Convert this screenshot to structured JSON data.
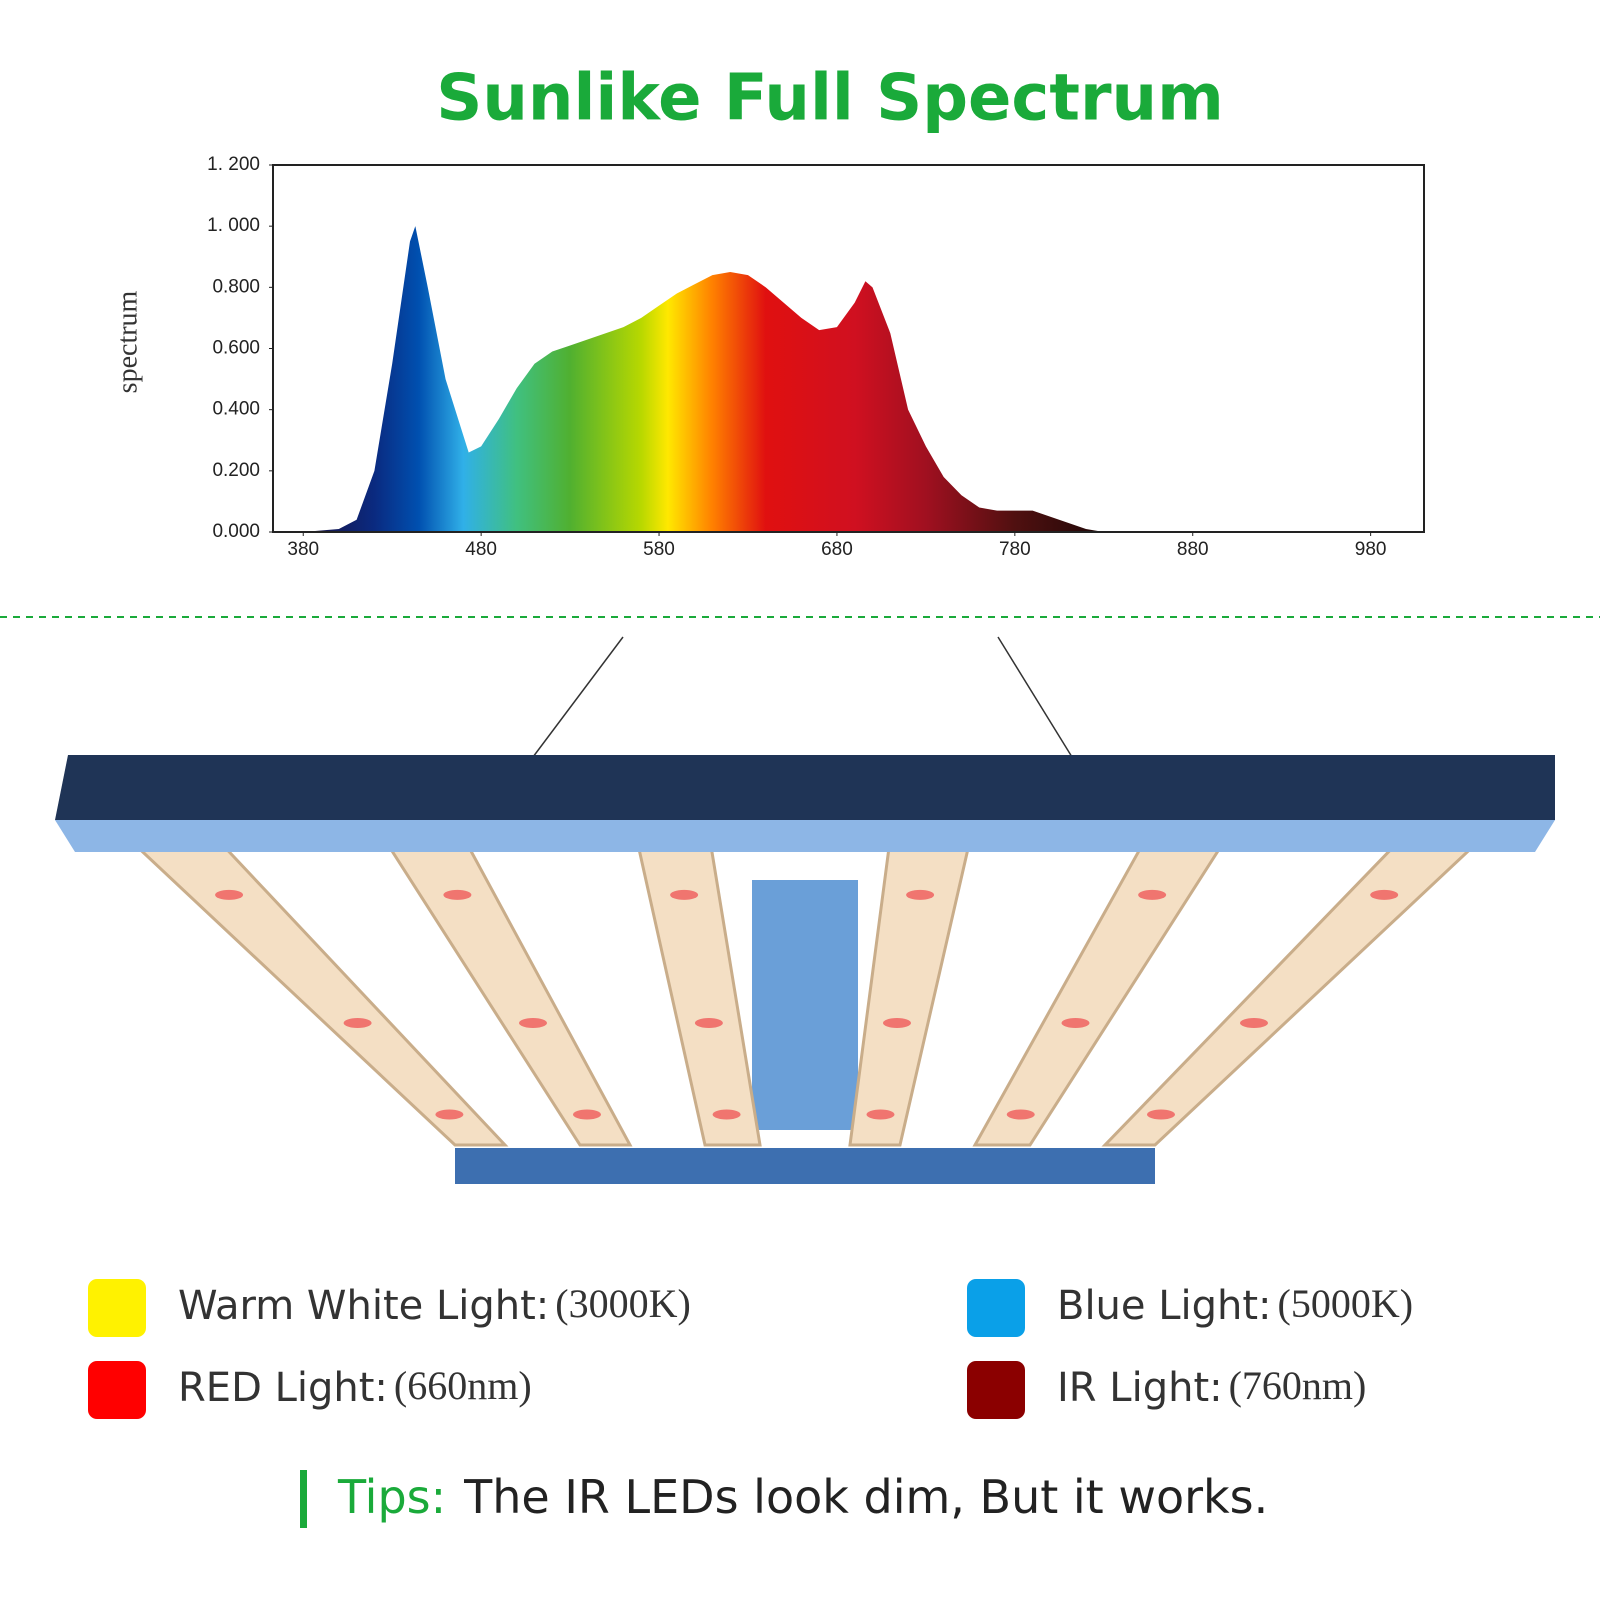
{
  "chart_data": {
    "type": "area",
    "title": "Sunlike Full Spectrum",
    "y_label": "spectrum",
    "x": [
      380,
      400,
      410,
      420,
      430,
      440,
      443,
      450,
      460,
      473,
      480,
      490,
      500,
      510,
      520,
      530,
      540,
      550,
      560,
      570,
      580,
      590,
      600,
      610,
      620,
      630,
      640,
      650,
      660,
      670,
      680,
      690,
      696,
      700,
      710,
      720,
      730,
      740,
      750,
      760,
      770,
      780,
      790,
      800,
      810,
      820,
      830
    ],
    "values": [
      0,
      0.01,
      0.04,
      0.2,
      0.55,
      0.95,
      1.0,
      0.8,
      0.5,
      0.26,
      0.28,
      0.37,
      0.47,
      0.55,
      0.59,
      0.61,
      0.63,
      0.65,
      0.67,
      0.7,
      0.74,
      0.78,
      0.81,
      0.84,
      0.85,
      0.84,
      0.8,
      0.75,
      0.7,
      0.66,
      0.67,
      0.75,
      0.82,
      0.8,
      0.65,
      0.4,
      0.28,
      0.18,
      0.12,
      0.08,
      0.07,
      0.07,
      0.07,
      0.05,
      0.03,
      0.01,
      0
    ],
    "xlim": [
      363,
      1010
    ],
    "ylim": [
      0,
      1.2
    ],
    "xticks": [
      380,
      480,
      580,
      680,
      780,
      880,
      980
    ],
    "yticks": [
      {
        "value": 0,
        "label": "0.000"
      },
      {
        "value": 0.2,
        "label": "0.200"
      },
      {
        "value": 0.4,
        "label": "0.400"
      },
      {
        "value": 0.6,
        "label": "0.600"
      },
      {
        "value": 0.8,
        "label": "0.800"
      },
      {
        "value": 1.0,
        "label": "1. 000"
      },
      {
        "value": 1.2,
        "label": "1. 200"
      }
    ]
  },
  "legend": [
    {
      "color": "#fff200",
      "label": "Warm White Light:",
      "detail": "(3000K)"
    },
    {
      "color": "#0aa0e8",
      "label": "Blue Light:",
      "detail": "(5000K)"
    },
    {
      "color": "#ff0000",
      "label": "RED Light:",
      "detail": "(660nm)"
    },
    {
      "color": "#8b0000",
      "label": "IR Light:",
      "detail": "(760nm)"
    }
  ],
  "tips": {
    "label": "Tips:",
    "text": "The IR LEDs look dim, But it works."
  }
}
